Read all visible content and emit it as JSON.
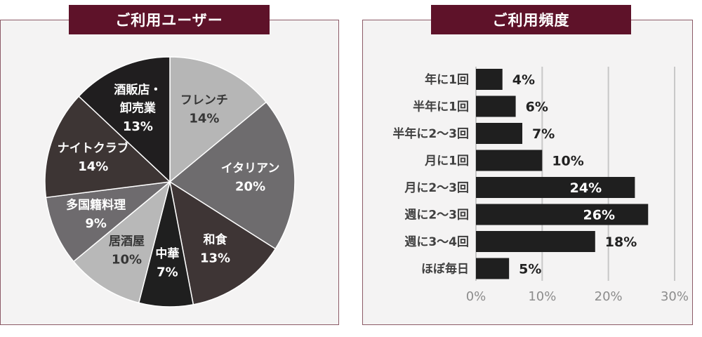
{
  "chart_data": [
    {
      "type": "pie",
      "title": "ご利用ユーザー",
      "unit": "%",
      "slices": [
        {
          "label": "フレンチ",
          "value": 14,
          "color": "#b6b6b6",
          "label_color": "#363636"
        },
        {
          "label": "イタリアン",
          "value": 20,
          "color": "#6e6c6e",
          "label_color": "#ffffff"
        },
        {
          "label": "和食",
          "value": 13,
          "color": "#3e3535",
          "label_color": "#ffffff"
        },
        {
          "label": "中華",
          "value": 7,
          "color": "#1f1f1f",
          "label_color": "#ffffff"
        },
        {
          "label": "居酒屋",
          "value": 10,
          "color": "#b8b8b8",
          "label_color": "#363636"
        },
        {
          "label": "多国籍料理",
          "value": 9,
          "color": "#6e6b6e",
          "label_color": "#ffffff"
        },
        {
          "label": "ナイトクラブ",
          "value": 14,
          "color": "#3d3534",
          "label_color": "#ffffff"
        },
        {
          "label": "酒販店・卸売業",
          "value": 13,
          "color": "#201e1f",
          "label_color": "#ffffff"
        }
      ]
    },
    {
      "type": "bar",
      "orientation": "horizontal",
      "title": "ご利用頻度",
      "unit": "%",
      "categories": [
        "年に1回",
        "半年に1回",
        "半年に2〜3回",
        "月に1回",
        "月に2〜3回",
        "週に2〜3回",
        "週に3〜4回",
        "ほぼ毎日"
      ],
      "values": [
        4,
        6,
        7,
        10,
        24,
        26,
        18,
        5
      ],
      "xlim": [
        0,
        30
      ],
      "xticks": [
        0,
        10,
        20,
        30
      ],
      "grid": true,
      "bar_color": "#1f1f1f"
    }
  ]
}
